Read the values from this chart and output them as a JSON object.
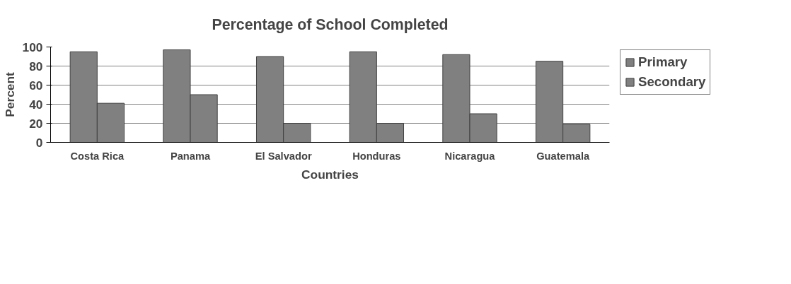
{
  "chart_data": {
    "type": "bar",
    "title": "Percentage of School Completed",
    "xlabel": "Countries",
    "ylabel": "Percent",
    "categories": [
      "Costa Rica",
      "Panama",
      "El Salvador",
      "Honduras",
      "Nicaragua",
      "Guatemala"
    ],
    "series": [
      {
        "name": "Primary",
        "color": "#808080",
        "values": [
          95,
          97,
          90,
          95,
          92,
          85
        ]
      },
      {
        "name": "Secondary",
        "color": "#808080",
        "values": [
          41,
          50,
          20,
          20,
          30,
          19
        ]
      }
    ],
    "ylim": [
      0,
      100
    ],
    "yticks": [
      0,
      20,
      40,
      60,
      80,
      100
    ],
    "grid": "y",
    "legend": "right"
  }
}
